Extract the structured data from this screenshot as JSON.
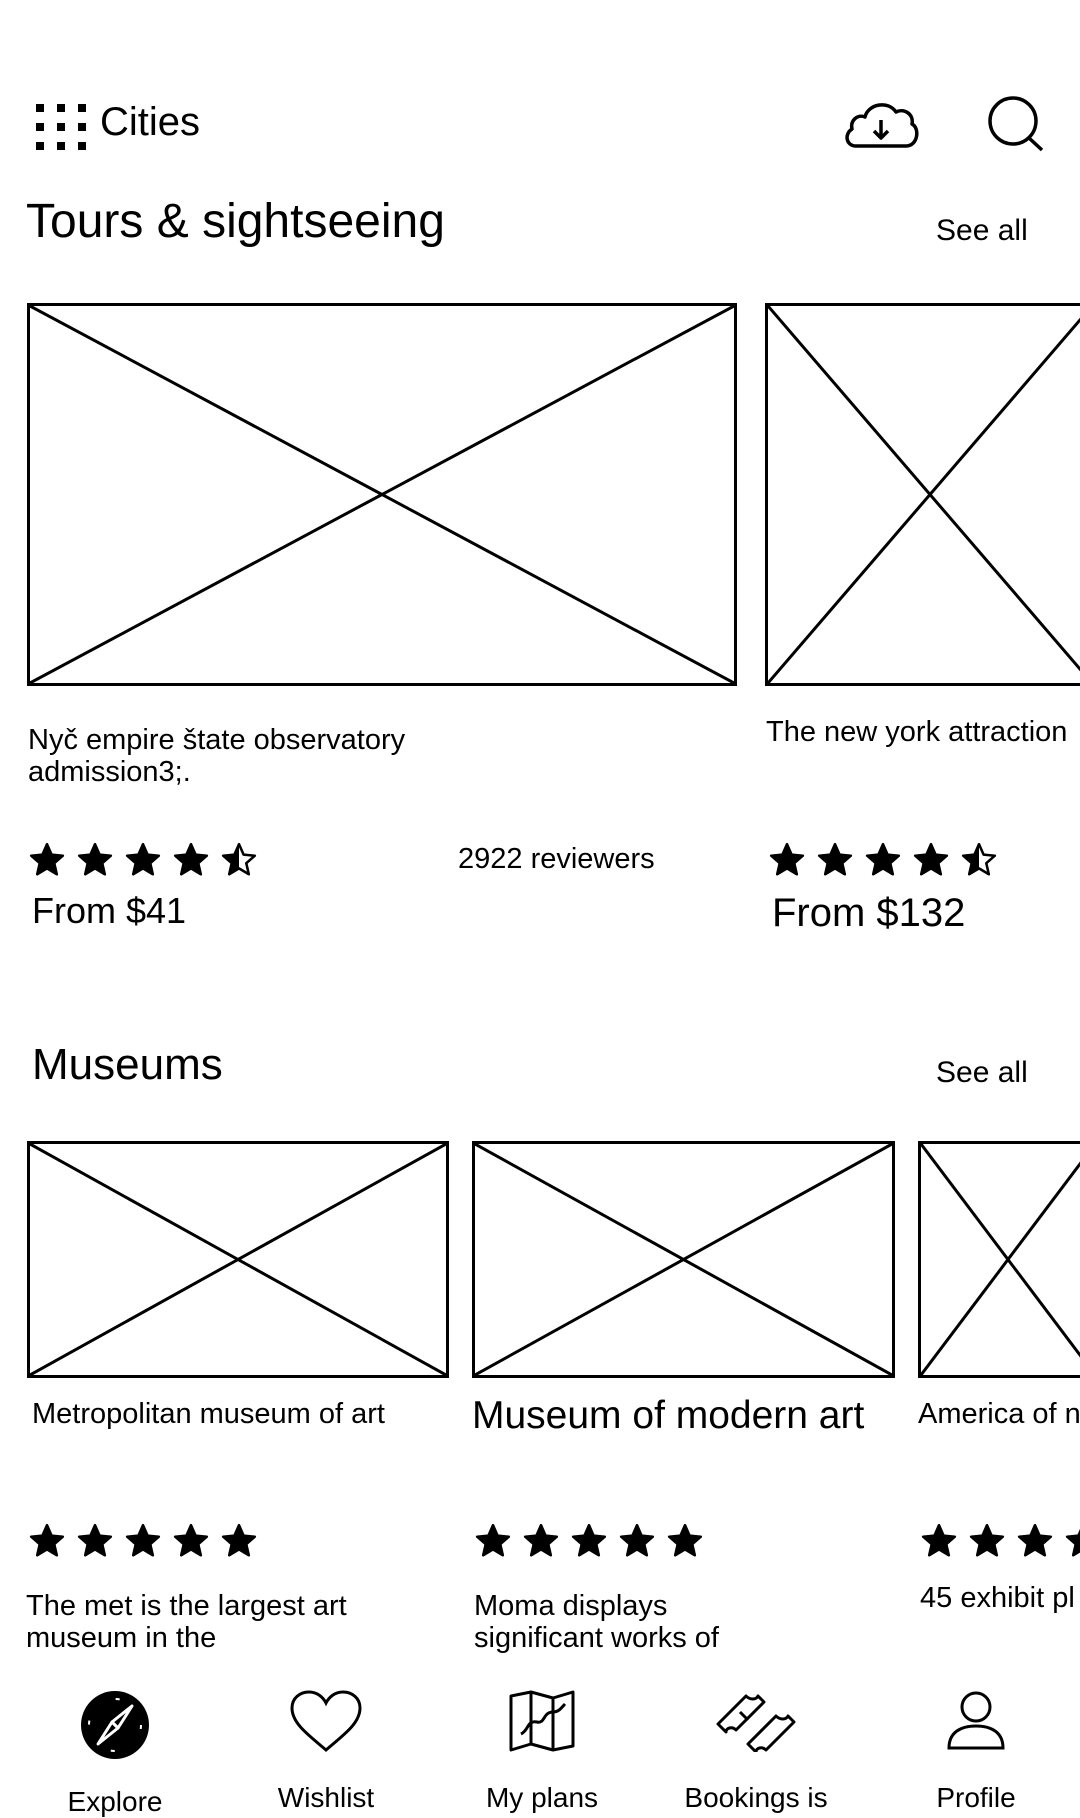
{
  "header": {
    "menu_icon": "grid-dots-icon",
    "title": "Cities",
    "download_icon": "cloud-download-icon",
    "search_icon": "search-icon"
  },
  "tours": {
    "title": "Tours & sightseeing",
    "see_all": "See all",
    "cards": [
      {
        "name_line1": "Nyč empire štate observatory",
        "name_line2": "admission3;.",
        "rating": 4.5,
        "reviewers": "2922 reviewers",
        "price": "From $41"
      },
      {
        "name_line1": "The new york attraction",
        "rating": 4.5,
        "price": "From $132"
      }
    ]
  },
  "museums": {
    "title": "Museums",
    "see_all": "See all",
    "cards": [
      {
        "name": "Metropolitan museum of art",
        "rating": 5,
        "desc_line1": "The met is the largest art",
        "desc_line2": "museum in the"
      },
      {
        "name": "Museum of modern art",
        "rating": 5,
        "desc_line1": "Moma displays",
        "desc_line2": "significant works of"
      },
      {
        "name": "America of n",
        "rating": 5,
        "desc_line1": "45 exhibit pl"
      }
    ]
  },
  "bottom_nav": [
    {
      "label": "Explore",
      "icon": "compass-icon",
      "active": true
    },
    {
      "label": "Wishlist",
      "icon": "heart-icon"
    },
    {
      "label": "My plans",
      "icon": "map-icon"
    },
    {
      "label": "Bookings is",
      "icon": "ticket-icon"
    },
    {
      "label": "Profile",
      "icon": "user-icon"
    }
  ]
}
